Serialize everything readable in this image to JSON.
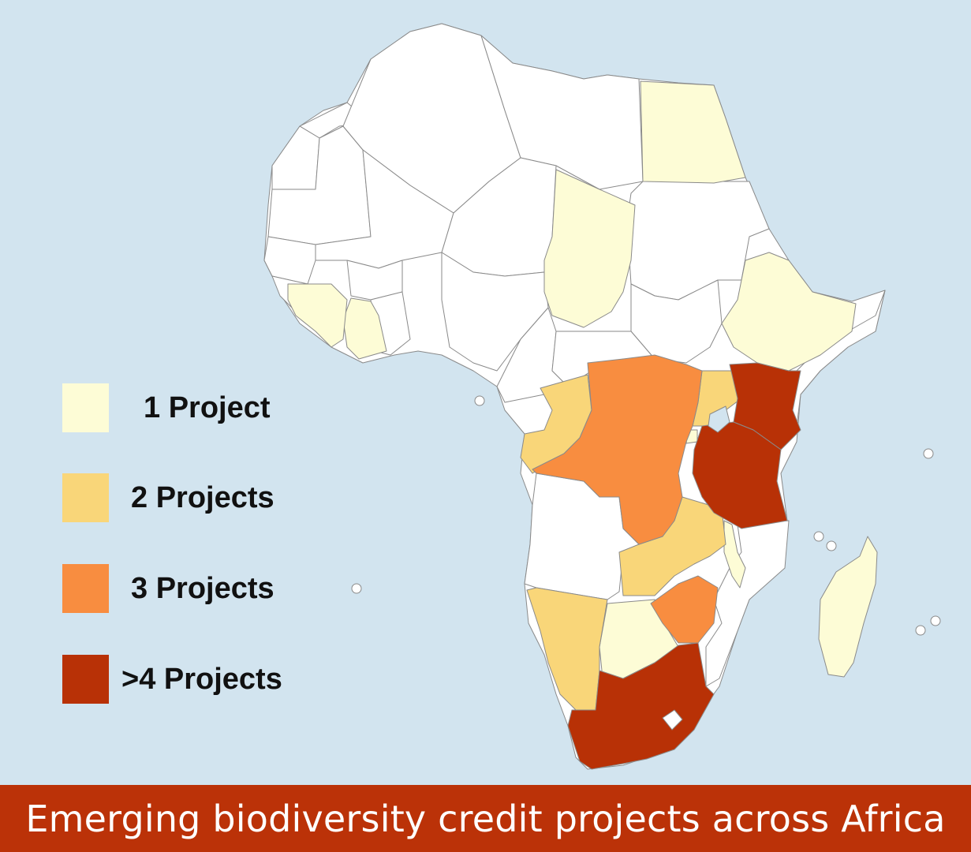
{
  "colors": {
    "ocean": "#d2e4ef",
    "land": "#ffffff",
    "border": "#888888",
    "one": "#fdfcd6",
    "two": "#f9d679",
    "three": "#f88d40",
    "four_plus": "#b83106",
    "banner": "#bb3208"
  },
  "legend": [
    {
      "label": "1 Project",
      "color_key": "one"
    },
    {
      "label": "2 Projects",
      "color_key": "two"
    },
    {
      "label": "3 Projects",
      "color_key": "three"
    },
    {
      "label": ">4 Projects",
      "color_key": "four_plus"
    }
  ],
  "countries": {
    "egypt": "one",
    "chad": "one",
    "ethiopia": "one",
    "cote_divoire": "one",
    "liberia": "one",
    "botswana": "one",
    "madagascar": "one",
    "malawi": "one",
    "burundi": "one",
    "congo": "two",
    "uganda": "two",
    "zambia": "two",
    "namibia": "two",
    "drc": "three",
    "zimbabwe": "three",
    "kenya": "four_plus",
    "tanzania": "four_plus",
    "south_africa": "four_plus"
  },
  "banner": {
    "title": "Emerging biodiversity credit projects across Africa"
  }
}
